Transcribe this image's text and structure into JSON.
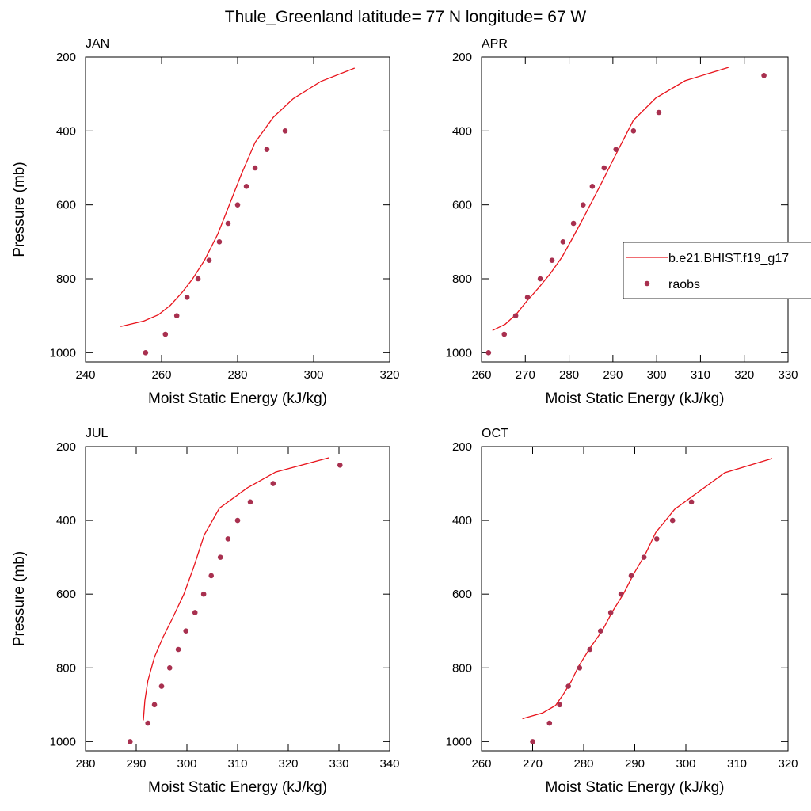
{
  "title": "Thule_Greenland  latitude= 77 N longitude= 67 W",
  "chart_data": [
    {
      "type": "line",
      "title": "JAN",
      "xlabel": "Moist Static Energy (kJ/kg)",
      "ylabel": "Pressure (mb)",
      "xlim": [
        240,
        320
      ],
      "xticks": [
        240,
        260,
        280,
        300,
        320
      ],
      "ylim": [
        1025,
        200
      ],
      "yticks": [
        200,
        400,
        600,
        800,
        1000
      ],
      "series": [
        {
          "style": "line",
          "color": "#e8141c",
          "x": [
            249.2,
            255.4,
            259.2,
            262.3,
            265.4,
            268.1,
            271.3,
            274.8,
            277.9,
            281,
            284.6,
            289.4,
            294.6,
            301.9,
            310.8
          ],
          "values": [
            929,
            914,
            897,
            872,
            837,
            801,
            750,
            679,
            598,
            517,
            431,
            363,
            313,
            266,
            230
          ]
        },
        {
          "style": "markers",
          "color": "#a8304f",
          "x": [
            255.8,
            261,
            264,
            266.7,
            269.6,
            272.5,
            275.2,
            277.5,
            280,
            282.3,
            284.6,
            287.7,
            292.5
          ],
          "values": [
            1000,
            950,
            900,
            850,
            800,
            750,
            700,
            650,
            600,
            550,
            500,
            450,
            400
          ]
        }
      ]
    },
    {
      "type": "line",
      "title": "APR",
      "xlabel": "Moist Static Energy (kJ/kg)",
      "xlim": [
        260,
        330
      ],
      "xticks": [
        260,
        270,
        280,
        290,
        300,
        310,
        320,
        330
      ],
      "ylim": [
        1025,
        200
      ],
      "yticks": [
        200,
        400,
        600,
        800,
        1000
      ],
      "legend": "right",
      "series": [
        {
          "style": "line",
          "name": "b.e21.BHIST.f19_g17",
          "color": "#e8141c",
          "x": [
            262.5,
            265.4,
            268,
            270.3,
            273,
            275.7,
            278.4,
            280.6,
            283,
            285.3,
            287.7,
            289.8,
            292,
            294.7,
            299.8,
            306.5,
            316.4
          ],
          "values": [
            940,
            923,
            895,
            861,
            825,
            786,
            741,
            694,
            641,
            589,
            534,
            484,
            433,
            371,
            311,
            264,
            228
          ]
        },
        {
          "style": "markers",
          "name": "raobs",
          "color": "#a8304f",
          "x": [
            261.6,
            265.2,
            267.8,
            270.5,
            273.4,
            276.1,
            278.6,
            281,
            283.2,
            285.3,
            288,
            290.7,
            294.7,
            300.5,
            324.5
          ],
          "values": [
            1000,
            950,
            900,
            850,
            800,
            750,
            700,
            650,
            600,
            550,
            500,
            450,
            400,
            350,
            250
          ]
        }
      ]
    },
    {
      "type": "line",
      "title": "JUL",
      "xlabel": "Moist Static Energy (kJ/kg)",
      "ylabel": "Pressure (mb)",
      "xlim": [
        280,
        340
      ],
      "xticks": [
        280,
        290,
        300,
        310,
        320,
        330,
        340
      ],
      "ylim": [
        1025,
        200
      ],
      "yticks": [
        200,
        400,
        600,
        800,
        1000
      ],
      "series": [
        {
          "style": "line",
          "color": "#e8141c",
          "x": [
            291.4,
            291.7,
            292.3,
            293.6,
            295.2,
            297.2,
            299.4,
            301.4,
            303.4,
            306.4,
            311.9,
            317.5,
            328
          ],
          "values": [
            942,
            889,
            835,
            771,
            719,
            664,
            600,
            524,
            440,
            367,
            312,
            269,
            230
          ]
        },
        {
          "style": "markers",
          "color": "#a8304f",
          "x": [
            288.8,
            292.3,
            293.6,
            295,
            296.6,
            298.3,
            299.8,
            301.6,
            303.3,
            304.8,
            306.6,
            308.1,
            310,
            312.5,
            317,
            330.2
          ],
          "values": [
            1000,
            950,
            900,
            850,
            800,
            750,
            700,
            650,
            600,
            550,
            500,
            450,
            400,
            350,
            300,
            250
          ]
        }
      ]
    },
    {
      "type": "line",
      "title": "OCT",
      "xlabel": "Moist Static Energy (kJ/kg)",
      "xlim": [
        260,
        320
      ],
      "xticks": [
        260,
        270,
        280,
        290,
        300,
        310,
        320
      ],
      "ylim": [
        1025,
        200
      ],
      "yticks": [
        200,
        400,
        600,
        800,
        1000
      ],
      "series": [
        {
          "style": "line",
          "color": "#e8141c",
          "x": [
            268,
            272,
            274.5,
            276,
            277.5,
            279,
            281.2,
            283.6,
            285.6,
            287.8,
            289.8,
            292.1,
            294.1,
            297.8,
            307.6,
            316.9
          ],
          "values": [
            938,
            922,
            902,
            872,
            838,
            796,
            747,
            700,
            648,
            599,
            545,
            491,
            433,
            370,
            271,
            232
          ]
        },
        {
          "style": "markers",
          "color": "#a8304f",
          "x": [
            270,
            273.3,
            275.3,
            277,
            279.2,
            281.2,
            283.3,
            285.3,
            287.3,
            289.3,
            291.8,
            294.3,
            297.4,
            301.1
          ],
          "values": [
            1000,
            950,
            900,
            850,
            800,
            750,
            700,
            650,
            600,
            550,
            500,
            450,
            400,
            350
          ]
        }
      ]
    }
  ]
}
